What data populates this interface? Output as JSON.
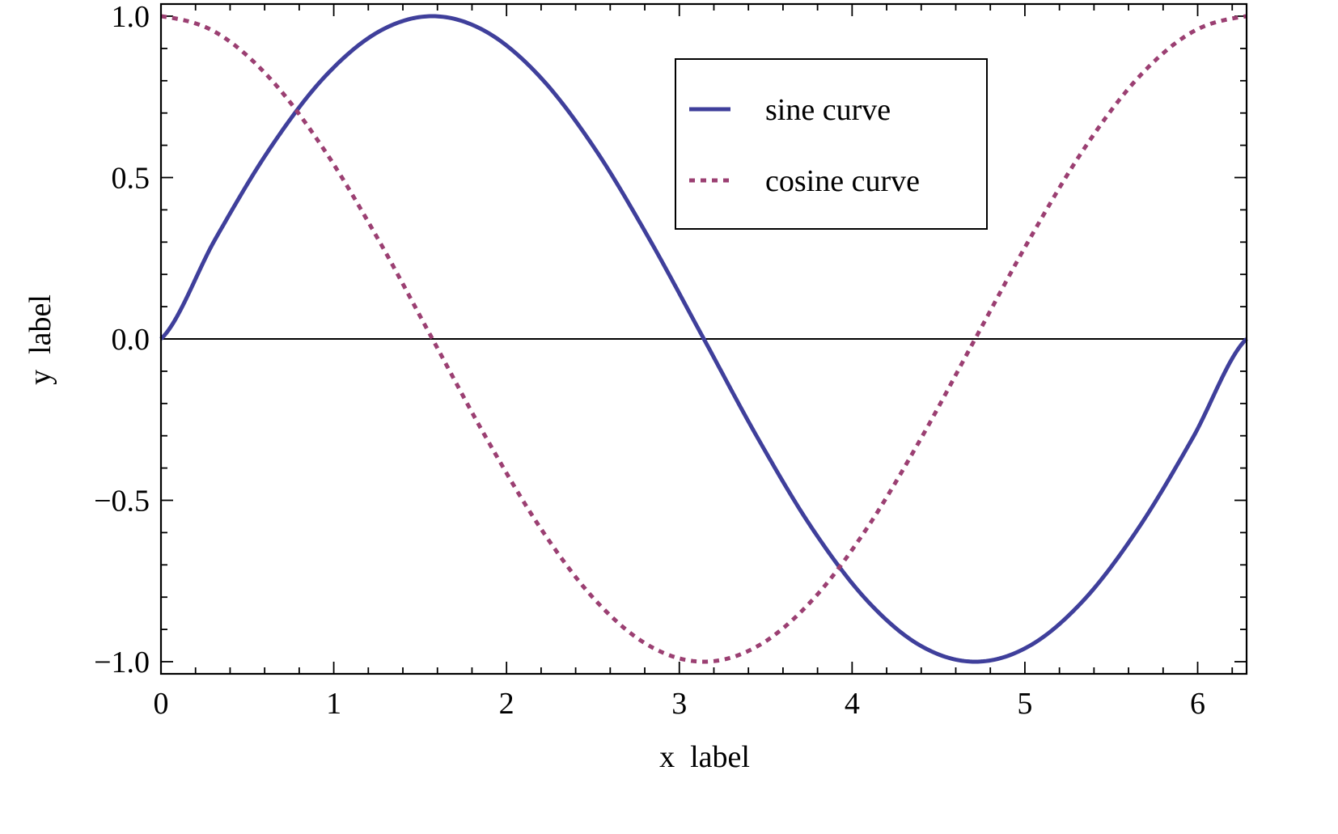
{
  "chart_data": {
    "type": "line",
    "title": "",
    "xlabel": "x  label",
    "ylabel": "y  label",
    "xlim": [
      0,
      6.283185307
    ],
    "ylim": [
      -1.0,
      1.0
    ],
    "x_ticks": [
      0,
      1,
      2,
      3,
      4,
      5,
      6
    ],
    "x_tick_labels": [
      "0",
      "1",
      "2",
      "3",
      "4",
      "5",
      "6"
    ],
    "y_ticks": [
      -1.0,
      -0.5,
      0.0,
      0.5,
      1.0
    ],
    "y_tick_labels": [
      "−1.0",
      "−0.5",
      "0.0",
      "0.5",
      "1.0"
    ],
    "grid": false,
    "zero_line": true,
    "legend": {
      "position": "top-right"
    },
    "series": [
      {
        "name": "sine  curve",
        "style": "solid",
        "color": "#3f3f9b",
        "x": [
          0,
          0.314,
          0.628,
          0.942,
          1.257,
          1.571,
          1.885,
          2.199,
          2.513,
          2.827,
          3.142,
          3.456,
          3.77,
          4.084,
          4.398,
          4.712,
          5.027,
          5.341,
          5.655,
          5.969,
          6.283
        ],
        "y": [
          0,
          0.309,
          0.588,
          0.809,
          0.951,
          1.0,
          0.951,
          0.809,
          0.588,
          0.309,
          0,
          -0.309,
          -0.588,
          -0.809,
          -0.951,
          -1.0,
          -0.951,
          -0.809,
          -0.588,
          -0.309,
          0
        ]
      },
      {
        "name": "cosine  curve",
        "style": "dotted",
        "color": "#9b3f72",
        "x": [
          0,
          0.314,
          0.628,
          0.942,
          1.257,
          1.571,
          1.885,
          2.199,
          2.513,
          2.827,
          3.142,
          3.456,
          3.77,
          4.084,
          4.398,
          4.712,
          5.027,
          5.341,
          5.655,
          5.969,
          6.283
        ],
        "y": [
          1.0,
          0.951,
          0.809,
          0.588,
          0.309,
          0,
          -0.309,
          -0.588,
          -0.809,
          -0.951,
          -1.0,
          -0.951,
          -0.809,
          -0.588,
          -0.309,
          0,
          0.309,
          0.588,
          0.809,
          0.951,
          1.0
        ]
      }
    ]
  }
}
